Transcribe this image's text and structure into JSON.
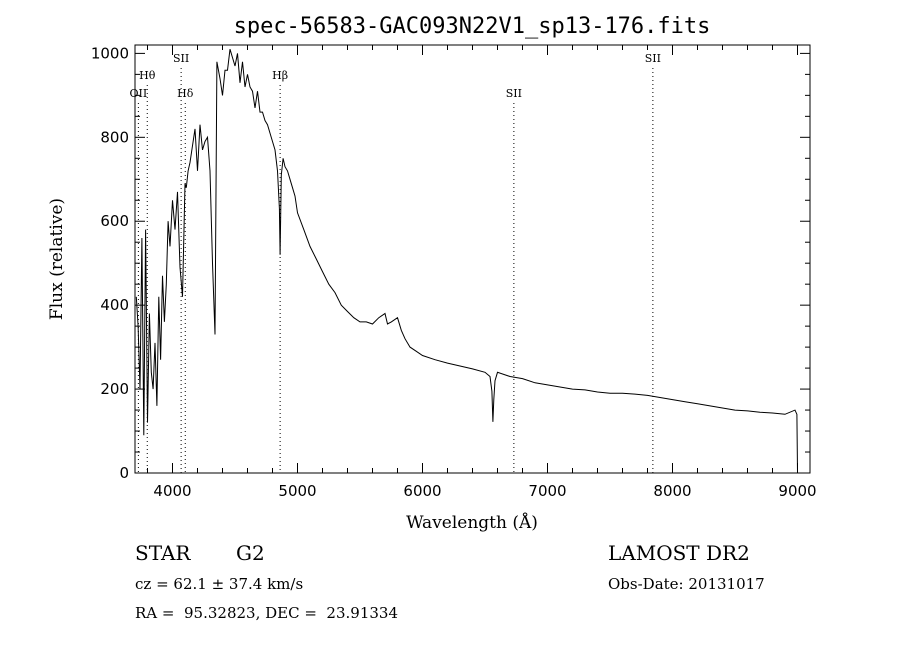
{
  "chart_data": {
    "type": "line",
    "title": "spec-56583-GAC093N22V1_sp13-176.fits",
    "xlabel": "Wavelength (Å)",
    "ylabel": "Flux (relative)",
    "xlim": [
      3700,
      9100
    ],
    "ylim": [
      0,
      1020
    ],
    "x_ticks": [
      4000,
      5000,
      6000,
      7000,
      8000,
      9000
    ],
    "y_ticks": [
      0,
      200,
      400,
      600,
      800,
      1000
    ],
    "grid": false,
    "line_color": "#000000",
    "series": [
      {
        "x": [
          3710,
          3725,
          3740,
          3755,
          3770,
          3785,
          3800,
          3815,
          3830,
          3845,
          3860,
          3875,
          3890,
          3905,
          3920,
          3935,
          3950,
          3965,
          3980,
          4000,
          4020,
          4040,
          4060,
          4080,
          4100,
          4110,
          4125,
          4140,
          4160,
          4180,
          4200,
          4220,
          4240,
          4260,
          4280,
          4300,
          4320,
          4340,
          4355,
          4380,
          4400,
          4420,
          4440,
          4460,
          4480,
          4500,
          4520,
          4540,
          4560,
          4580,
          4600,
          4620,
          4640,
          4660,
          4680,
          4700,
          4720,
          4740,
          4760,
          4780,
          4800,
          4820,
          4840,
          4855,
          4861,
          4870,
          4885,
          4900,
          4920,
          4940,
          4960,
          4980,
          5000,
          5050,
          5100,
          5150,
          5200,
          5250,
          5300,
          5350,
          5400,
          5450,
          5500,
          5550,
          5600,
          5650,
          5700,
          5720,
          5750,
          5800,
          5830,
          5860,
          5900,
          5950,
          6000,
          6100,
          6200,
          6300,
          6400,
          6500,
          6540,
          6555,
          6563,
          6570,
          6580,
          6600,
          6700,
          6800,
          6900,
          7000,
          7100,
          7200,
          7300,
          7400,
          7500,
          7600,
          7700,
          7800,
          7900,
          8000,
          8100,
          8200,
          8300,
          8400,
          8500,
          8600,
          8700,
          8800,
          8900,
          8980,
          8995,
          9000
        ],
        "y": [
          420,
          350,
          200,
          560,
          90,
          580,
          120,
          380,
          240,
          200,
          310,
          160,
          420,
          270,
          470,
          360,
          450,
          600,
          540,
          650,
          580,
          670,
          490,
          420,
          690,
          680,
          720,
          740,
          780,
          820,
          720,
          830,
          770,
          790,
          800,
          720,
          500,
          330,
          980,
          940,
          900,
          960,
          960,
          1010,
          990,
          970,
          1000,
          930,
          980,
          920,
          950,
          920,
          910,
          870,
          910,
          860,
          860,
          840,
          830,
          810,
          790,
          770,
          720,
          630,
          520,
          710,
          750,
          730,
          720,
          700,
          680,
          660,
          620,
          580,
          540,
          510,
          480,
          450,
          430,
          400,
          385,
          370,
          360,
          360,
          355,
          370,
          380,
          355,
          360,
          370,
          340,
          320,
          300,
          290,
          280,
          270,
          262,
          255,
          248,
          240,
          230,
          195,
          122,
          175,
          220,
          240,
          230,
          225,
          215,
          210,
          205,
          200,
          198,
          193,
          190,
          190,
          188,
          185,
          180,
          175,
          170,
          165,
          160,
          155,
          150,
          148,
          145,
          143,
          140,
          150,
          140,
          2
        ]
      }
    ],
    "line_marks": [
      {
        "label": "OII",
        "wavelength": 3727,
        "row": 2
      },
      {
        "label": "Hθ",
        "wavelength": 3798,
        "row": 1
      },
      {
        "label": "SII",
        "wavelength": 4069,
        "row": 0
      },
      {
        "label": "Hδ",
        "wavelength": 4102,
        "row": 2
      },
      {
        "label": "Hβ",
        "wavelength": 4861,
        "row": 1
      },
      {
        "label": "SII",
        "wavelength": 6731,
        "row": 2
      },
      {
        "label": "SII",
        "wavelength": 7843,
        "row": 0
      }
    ]
  },
  "info": {
    "object_class": "STAR",
    "subclass": "G2",
    "survey": "LAMOST DR2",
    "cz": "cz = 62.1 ± 37.4 km/s",
    "obs_date": "Obs-Date: 20131017",
    "coords": "RA =  95.32823, DEC =  23.91334"
  }
}
